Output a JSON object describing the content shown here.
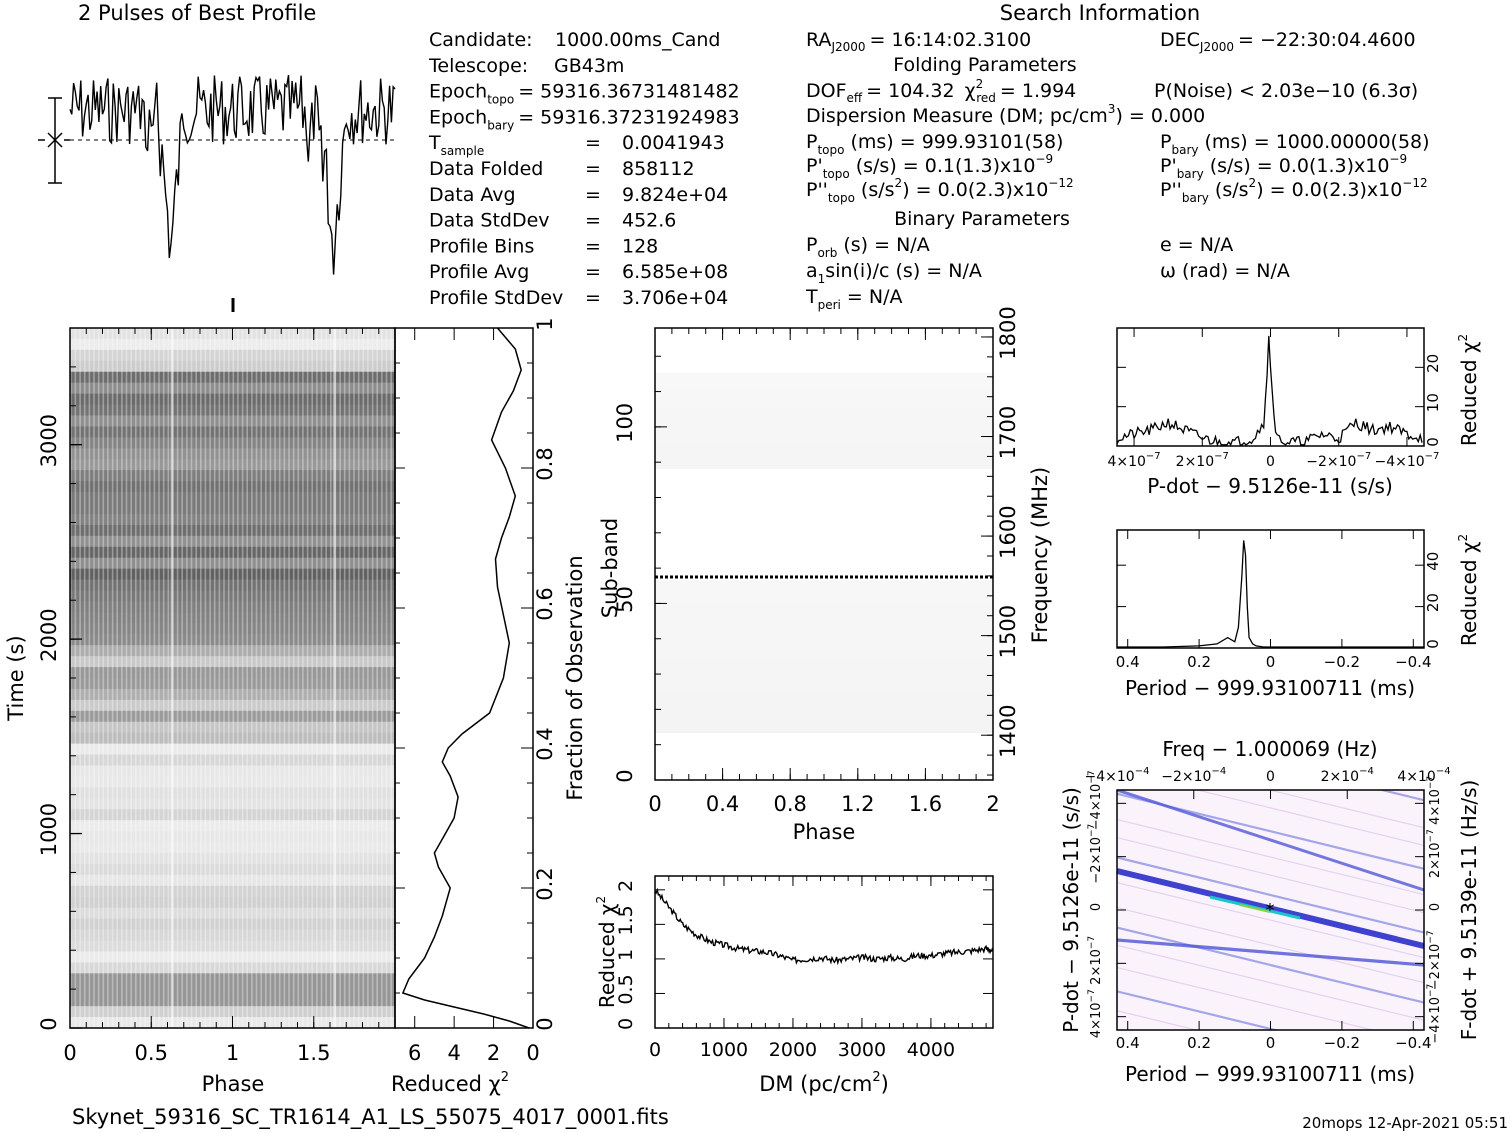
{
  "title_profile": "2 Pulses of Best Profile",
  "title_search": "Search Information",
  "footer_file": "Skynet_59316_SC_TR1614_A1_LS_55075_4017_0001.fits",
  "footer_stamp": "20mops 12-Apr-2021 05:51",
  "info_left": [
    {
      "label": "Candidate:",
      "sub": "",
      "value": "1000.00ms_Cand"
    },
    {
      "label": "Telescope:",
      "sub": "",
      "value": "GB43m"
    },
    {
      "label": "Epoch",
      "sub": "topo",
      "value": "= 59316.36731481482"
    },
    {
      "label": "Epoch",
      "sub": "bary",
      "value": "= 59316.37231924983"
    },
    {
      "label": "T",
      "sub": "sample",
      "value": "0.0041943"
    },
    {
      "label": "Data Folded",
      "sub": "",
      "value": "858112"
    },
    {
      "label": "Data Avg",
      "sub": "",
      "value": "9.824e+04"
    },
    {
      "label": "Data StdDev",
      "sub": "",
      "value": "452.6"
    },
    {
      "label": "Profile Bins",
      "sub": "",
      "value": "128"
    },
    {
      "label": "Profile Avg",
      "sub": "",
      "value": "6.585e+08"
    },
    {
      "label": "Profile StdDev",
      "sub": "",
      "value": "3.706e+04"
    }
  ],
  "search": {
    "ra": "RA",
    "ra_sub": "J2000",
    "ra_val": "= 16:14:02.3100",
    "dec": "DEC",
    "dec_sub": "J2000",
    "dec_val": "= −22:30:04.4600",
    "folding_hdr": "Folding Parameters",
    "dof": "DOF",
    "dof_sub": "eff",
    "dof_val": "= 104.32",
    "chi": "χ",
    "chi_sup": "2",
    "chi_sub": "red",
    "chi_val": "= 1.994",
    "pnoise": "P(Noise) < 2.03e−10   (6.3σ)",
    "dm_line": "Dispersion Measure (DM; pc/cm",
    "dm_sup": "3",
    "dm_val": ") = 0.000",
    "ptopo": "P",
    "ptopo_sub": "topo",
    "ptopo_val": "(ms) =  999.93101(58)",
    "pbary": "P",
    "pbary_sub": "bary",
    "pbary_val": "(ms) =  1000.00000(58)",
    "pdtopo": "P'",
    "pdtopo_sub": "topo",
    "pdtopo_val": "(s/s) =  0.1(1.3)x10",
    "pdtopo_exp": "−9",
    "pdbary": "P'",
    "pdbary_sub": "bary",
    "pdbary_val": "(s/s) = 0.0(1.3)x10",
    "pdbary_exp": "−9",
    "pddtopo": "P''",
    "pddtopo_sub": "topo",
    "pddtopo_val": "(s/s",
    "pddtopo_sup": "2",
    "pddtopo_val2": ") = 0.0(2.3)x10",
    "pddtopo_exp": "−12",
    "pddbary": "P''",
    "pddbary_sub": "bary",
    "pddbary_val": "(s/s",
    "pddbary_sup": "2",
    "pddbary_val2": ") = 0.0(2.3)x10",
    "pddbary_exp": "−12",
    "binary_hdr": "Binary Parameters",
    "porb": "P",
    "porb_sub": "orb",
    "porb_val": "(s) = N/A",
    "e_val": "e = N/A",
    "a1": "a",
    "a1_sub": "1",
    "a1_val": "sin(i)/c (s) = N/A",
    "omega_val": "ω (rad) = N/A",
    "tperi": "T",
    "tperi_sub": "peri",
    "tperi_val": "= N/A"
  },
  "labels": {
    "time_axis": "Time (s)",
    "phase": "Phase",
    "redchi": "Reduced χ",
    "sq": "2",
    "fraction": "Fraction of Observation",
    "subband": "Sub-band",
    "frequency": "Frequency (MHz)",
    "dm_axis": "DM (pc/cm",
    "dm_close": ")",
    "pdot_axis": "P-dot − 9.5126e-11 (s/s)",
    "period_axis": "Period − 999.93100711 (ms)",
    "freq_axis": "Freq − 1.000069 (Hz)",
    "pdot_side": "P-dot − 9.5126e-11 (s/s)",
    "fdot_side": "F-dot + 9.5139e-11 (Hz/s)"
  },
  "ticks": {
    "time_y": [
      "0",
      "1000",
      "2000",
      "3000"
    ],
    "phase_x": [
      "0",
      "0.5",
      "1",
      "1.5"
    ],
    "redchi_x": [
      "6",
      "4",
      "2",
      "0"
    ],
    "fraction_y": [
      "0",
      "0.2",
      "0.4",
      "0.6",
      "0.8",
      "1"
    ],
    "subband_y": [
      "0",
      "50",
      "100"
    ],
    "freq_y": [
      "1400",
      "1500",
      "1600",
      "1700",
      "1800"
    ],
    "phase2_x": [
      "0",
      "0.4",
      "0.8",
      "1.2",
      "1.6",
      "2"
    ],
    "dm_x": [
      "0",
      "1000",
      "2000",
      "3000",
      "4000"
    ],
    "dmchi_y": [
      "0",
      "0.5",
      "1",
      "1.5",
      "2"
    ],
    "pdot_x": [
      "4×10",
      "2×10",
      "0",
      "−2×10",
      "−4×10"
    ],
    "pdot_x_exp": "−7",
    "pdotchi_y": [
      "0",
      "10",
      "20"
    ],
    "period_x": [
      "0.4",
      "0.2",
      "0",
      "−0.2",
      "−0.4"
    ],
    "periodchi_y": [
      "0",
      "20",
      "40"
    ],
    "freq_top": [
      "−4×10",
      "−2×10",
      "0",
      "2×10",
      "4×10"
    ],
    "freq_top_exp": "−4",
    "pp_left": [
      "4×10",
      "2×10",
      "0",
      "−2×10",
      "−4×10"
    ],
    "pp_right": [
      "−4×10",
      "−2×10",
      "0",
      "2×10",
      "4×10"
    ],
    "pp_exp": "−7",
    "pp_bottom": [
      "0.4",
      "0.2",
      "0",
      "−0.2",
      "−0.4"
    ]
  },
  "chart_data": [
    {
      "type": "line",
      "id": "profile",
      "title": "2 Pulses of Best Profile",
      "x_range": [
        0,
        2
      ],
      "pulse_dips_phase": [
        0.62,
        1.62
      ]
    },
    {
      "type": "heatmap",
      "id": "time_phase",
      "xlabel": "Phase",
      "ylabel": "Time (s)",
      "xlim": [
        0,
        2
      ],
      "ylim": [
        0,
        3600
      ]
    },
    {
      "type": "line",
      "id": "redchi_vs_time",
      "xlabel": "Reduced χ2",
      "ylabel": "Fraction of Observation",
      "xlim": [
        0,
        7
      ],
      "ylim": [
        0,
        1
      ],
      "x": [
        0.2,
        1.2,
        2.5,
        4.0,
        5.5,
        6.6,
        6.3,
        5.5,
        5.0,
        4.6,
        4.2,
        4.8,
        5.0,
        4.4,
        4.0,
        3.8,
        4.2,
        4.6,
        4.3,
        3.6,
        2.2,
        1.5,
        1.2,
        1.5,
        1.8,
        1.9,
        1.6,
        1.2,
        0.9,
        1.4,
        2.1,
        1.6,
        1.0,
        0.6,
        0.9,
        1.8
      ],
      "y": [
        0.0,
        0.01,
        0.02,
        0.03,
        0.04,
        0.05,
        0.07,
        0.1,
        0.13,
        0.16,
        0.2,
        0.23,
        0.25,
        0.28,
        0.3,
        0.33,
        0.36,
        0.38,
        0.4,
        0.42,
        0.45,
        0.5,
        0.55,
        0.59,
        0.63,
        0.67,
        0.7,
        0.73,
        0.76,
        0.8,
        0.84,
        0.88,
        0.91,
        0.94,
        0.97,
        1.0
      ]
    },
    {
      "type": "heatmap",
      "id": "subband_phase",
      "xlabel": "Phase",
      "ylabel": "Sub-band",
      "xlim": [
        0,
        2
      ],
      "ylim": [
        0,
        128
      ],
      "y2label": "Frequency (MHz)",
      "y2lim": [
        1355,
        1809
      ]
    },
    {
      "type": "line",
      "id": "dm_chi",
      "xlabel": "DM (pc/cm3)",
      "ylabel": "Reduced χ2",
      "xlim": [
        0,
        4900
      ],
      "ylim": [
        0,
        2.2
      ],
      "x": [
        0,
        200,
        400,
        600,
        800,
        1000,
        1200,
        1400,
        1600,
        1800,
        2000,
        2200,
        2400,
        2600,
        2800,
        3000,
        3200,
        3400,
        3600,
        3800,
        4000,
        4200,
        4400,
        4600,
        4800,
        4900
      ],
      "y": [
        2.0,
        1.75,
        1.5,
        1.35,
        1.25,
        1.2,
        1.15,
        1.12,
        1.1,
        1.05,
        0.98,
        1.0,
        1.02,
        0.98,
        1.0,
        1.02,
        1.0,
        1.02,
        1.0,
        1.05,
        1.05,
        1.08,
        1.1,
        1.12,
        1.15,
        1.12
      ]
    },
    {
      "type": "line",
      "id": "pdot_chi",
      "xlabel": "P-dot − 9.5126e-11 (s/s)",
      "ylabel": "Reduced χ2",
      "xlim": [
        4.5e-07,
        -4.5e-07
      ],
      "ylim": [
        0,
        30
      ],
      "x": [
        4.5e-07,
        4e-07,
        3.5e-07,
        3e-07,
        2.5e-07,
        2e-07,
        1.5e-07,
        1e-07,
        5e-08,
        2e-08,
        1e-08,
        5e-09,
        0,
        -1e-08,
        -2e-08,
        -5e-08,
        -1e-07,
        -1.5e-07,
        -2e-07,
        -2.5e-07,
        -3e-07,
        -3.5e-07,
        -4e-07,
        -4.5e-07
      ],
      "y": [
        2,
        3,
        4,
        6,
        4,
        2,
        1,
        1,
        2,
        6,
        18,
        28,
        20,
        8,
        2,
        1,
        1,
        3,
        2,
        6,
        4,
        5,
        3,
        2
      ]
    },
    {
      "type": "line",
      "id": "period_chi",
      "xlabel": "Period − 999.93100711 (ms)",
      "ylabel": "Reduced χ2",
      "xlim": [
        0.43,
        -0.43
      ],
      "ylim": [
        0,
        57
      ],
      "x": [
        0.43,
        0.3,
        0.2,
        0.15,
        0.12,
        0.1,
        0.09,
        0.08,
        0.075,
        0.07,
        0.065,
        0.06,
        0.05,
        0.04,
        0.02,
        0.0,
        -0.2,
        -0.43
      ],
      "y": [
        0.5,
        0.5,
        1,
        2,
        5,
        3,
        10,
        35,
        52,
        45,
        20,
        5,
        2,
        1,
        0.5,
        0.5,
        0.5,
        0.5
      ]
    },
    {
      "type": "heatmap",
      "id": "period_pdot",
      "xlabel": "Period − 999.93100711 (ms)",
      "ylabel": "P-dot − 9.5126e-11 (s/s)",
      "x2label": "Freq − 1.000069 (Hz)",
      "y2label": "F-dot + 9.5139e-11 (Hz/s)",
      "xlim": [
        0.43,
        -0.43
      ],
      "ylim": [
        -4.5e-07,
        4.5e-07
      ]
    }
  ]
}
